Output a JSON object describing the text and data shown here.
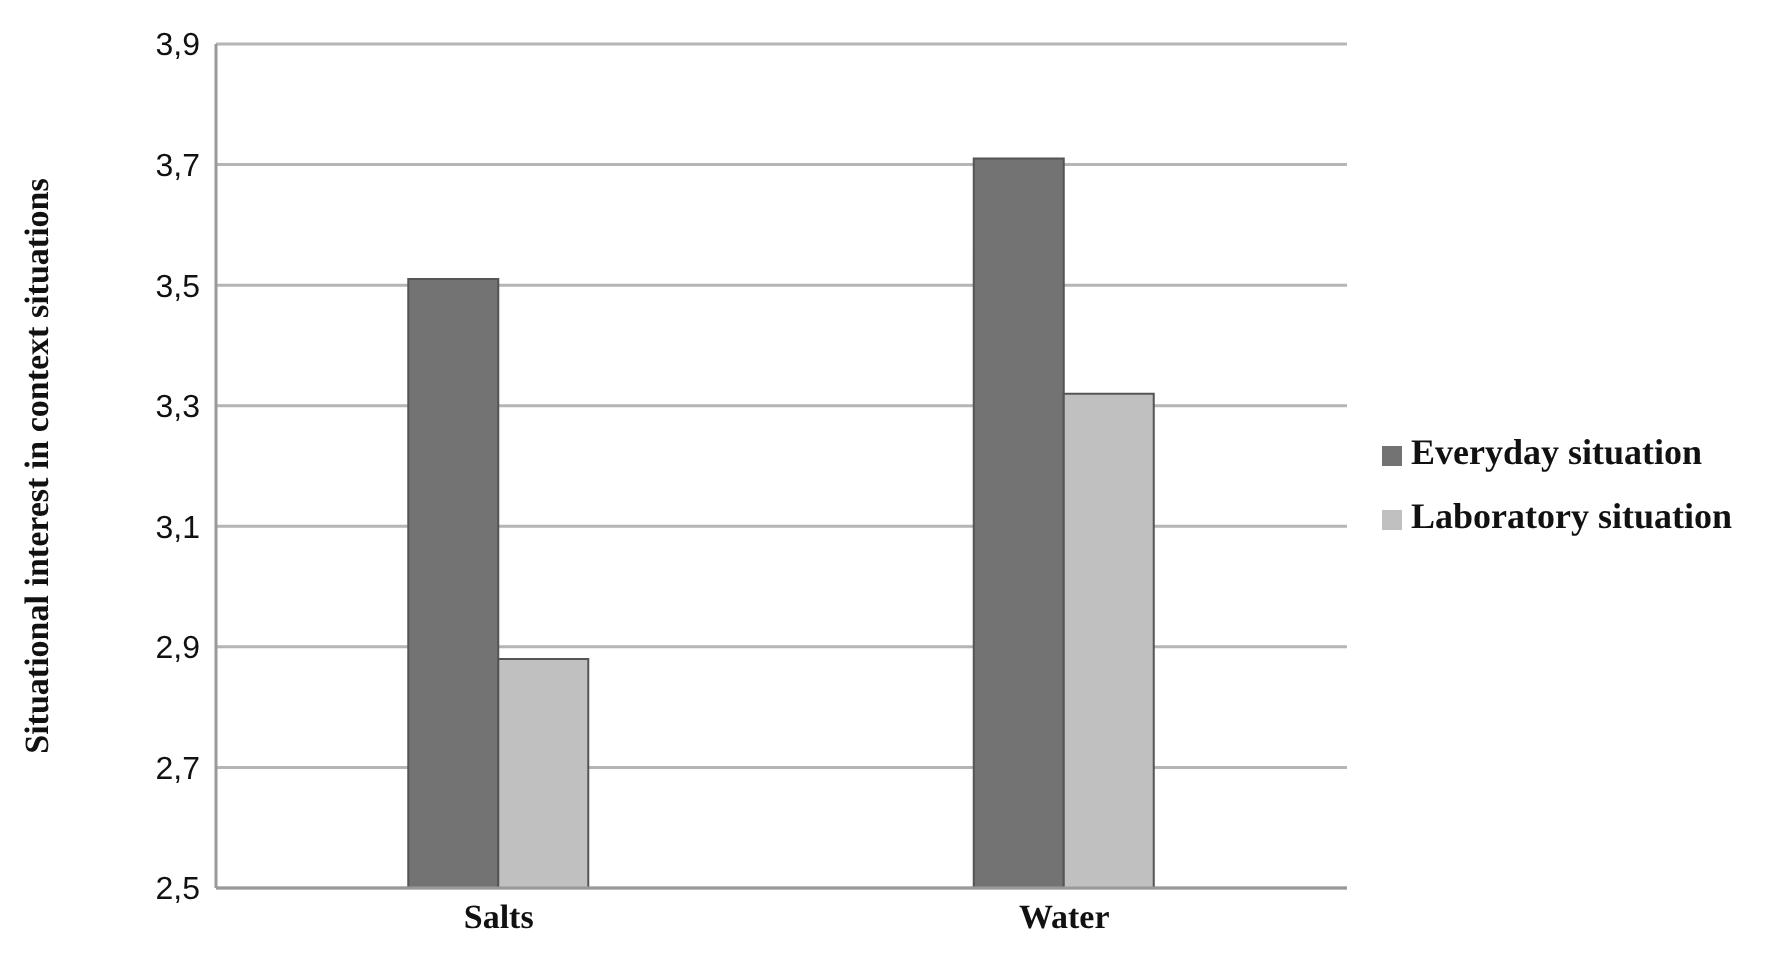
{
  "chart_data": {
    "type": "bar",
    "ylabel": "Situational interest in context situations",
    "categories": [
      "Salts",
      "Water"
    ],
    "series": [
      {
        "name": "Everyday situation",
        "color": "#737373",
        "values": [
          3.51,
          3.71
        ]
      },
      {
        "name": "Laboratory situation",
        "color": "#c0c0c0",
        "values": [
          2.88,
          3.32
        ]
      }
    ],
    "ylim": [
      2.5,
      3.9
    ],
    "yticks": [
      {
        "value": 2.5,
        "label": "2,5"
      },
      {
        "value": 2.7,
        "label": "2,7"
      },
      {
        "value": 2.9,
        "label": "2,9"
      },
      {
        "value": 3.1,
        "label": "3,1"
      },
      {
        "value": 3.3,
        "label": "3,3"
      },
      {
        "value": 3.5,
        "label": "3,5"
      },
      {
        "value": 3.7,
        "label": "3,7"
      },
      {
        "value": 3.9,
        "label": "3,9"
      }
    ],
    "grid": "y",
    "legend": "right"
  }
}
